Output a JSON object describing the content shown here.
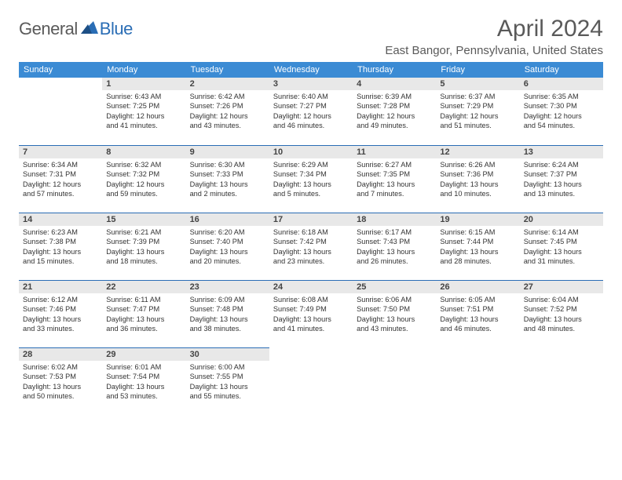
{
  "logo": {
    "general": "General",
    "blue": "Blue"
  },
  "title": "April 2024",
  "subtitle": "East Bangor, Pennsylvania, United States",
  "colors": {
    "header_bg": "#3b8bd4",
    "header_text": "#ffffff",
    "daynum_bg": "#e8e8e8",
    "border": "#2a6db5",
    "logo_blue": "#2a6db5",
    "text": "#333333"
  },
  "weekdays": [
    "Sunday",
    "Monday",
    "Tuesday",
    "Wednesday",
    "Thursday",
    "Friday",
    "Saturday"
  ],
  "weeks": [
    [
      null,
      {
        "n": "1",
        "sr": "Sunrise: 6:43 AM",
        "ss": "Sunset: 7:25 PM",
        "d1": "Daylight: 12 hours",
        "d2": "and 41 minutes."
      },
      {
        "n": "2",
        "sr": "Sunrise: 6:42 AM",
        "ss": "Sunset: 7:26 PM",
        "d1": "Daylight: 12 hours",
        "d2": "and 43 minutes."
      },
      {
        "n": "3",
        "sr": "Sunrise: 6:40 AM",
        "ss": "Sunset: 7:27 PM",
        "d1": "Daylight: 12 hours",
        "d2": "and 46 minutes."
      },
      {
        "n": "4",
        "sr": "Sunrise: 6:39 AM",
        "ss": "Sunset: 7:28 PM",
        "d1": "Daylight: 12 hours",
        "d2": "and 49 minutes."
      },
      {
        "n": "5",
        "sr": "Sunrise: 6:37 AM",
        "ss": "Sunset: 7:29 PM",
        "d1": "Daylight: 12 hours",
        "d2": "and 51 minutes."
      },
      {
        "n": "6",
        "sr": "Sunrise: 6:35 AM",
        "ss": "Sunset: 7:30 PM",
        "d1": "Daylight: 12 hours",
        "d2": "and 54 minutes."
      }
    ],
    [
      {
        "n": "7",
        "sr": "Sunrise: 6:34 AM",
        "ss": "Sunset: 7:31 PM",
        "d1": "Daylight: 12 hours",
        "d2": "and 57 minutes."
      },
      {
        "n": "8",
        "sr": "Sunrise: 6:32 AM",
        "ss": "Sunset: 7:32 PM",
        "d1": "Daylight: 12 hours",
        "d2": "and 59 minutes."
      },
      {
        "n": "9",
        "sr": "Sunrise: 6:30 AM",
        "ss": "Sunset: 7:33 PM",
        "d1": "Daylight: 13 hours",
        "d2": "and 2 minutes."
      },
      {
        "n": "10",
        "sr": "Sunrise: 6:29 AM",
        "ss": "Sunset: 7:34 PM",
        "d1": "Daylight: 13 hours",
        "d2": "and 5 minutes."
      },
      {
        "n": "11",
        "sr": "Sunrise: 6:27 AM",
        "ss": "Sunset: 7:35 PM",
        "d1": "Daylight: 13 hours",
        "d2": "and 7 minutes."
      },
      {
        "n": "12",
        "sr": "Sunrise: 6:26 AM",
        "ss": "Sunset: 7:36 PM",
        "d1": "Daylight: 13 hours",
        "d2": "and 10 minutes."
      },
      {
        "n": "13",
        "sr": "Sunrise: 6:24 AM",
        "ss": "Sunset: 7:37 PM",
        "d1": "Daylight: 13 hours",
        "d2": "and 13 minutes."
      }
    ],
    [
      {
        "n": "14",
        "sr": "Sunrise: 6:23 AM",
        "ss": "Sunset: 7:38 PM",
        "d1": "Daylight: 13 hours",
        "d2": "and 15 minutes."
      },
      {
        "n": "15",
        "sr": "Sunrise: 6:21 AM",
        "ss": "Sunset: 7:39 PM",
        "d1": "Daylight: 13 hours",
        "d2": "and 18 minutes."
      },
      {
        "n": "16",
        "sr": "Sunrise: 6:20 AM",
        "ss": "Sunset: 7:40 PM",
        "d1": "Daylight: 13 hours",
        "d2": "and 20 minutes."
      },
      {
        "n": "17",
        "sr": "Sunrise: 6:18 AM",
        "ss": "Sunset: 7:42 PM",
        "d1": "Daylight: 13 hours",
        "d2": "and 23 minutes."
      },
      {
        "n": "18",
        "sr": "Sunrise: 6:17 AM",
        "ss": "Sunset: 7:43 PM",
        "d1": "Daylight: 13 hours",
        "d2": "and 26 minutes."
      },
      {
        "n": "19",
        "sr": "Sunrise: 6:15 AM",
        "ss": "Sunset: 7:44 PM",
        "d1": "Daylight: 13 hours",
        "d2": "and 28 minutes."
      },
      {
        "n": "20",
        "sr": "Sunrise: 6:14 AM",
        "ss": "Sunset: 7:45 PM",
        "d1": "Daylight: 13 hours",
        "d2": "and 31 minutes."
      }
    ],
    [
      {
        "n": "21",
        "sr": "Sunrise: 6:12 AM",
        "ss": "Sunset: 7:46 PM",
        "d1": "Daylight: 13 hours",
        "d2": "and 33 minutes."
      },
      {
        "n": "22",
        "sr": "Sunrise: 6:11 AM",
        "ss": "Sunset: 7:47 PM",
        "d1": "Daylight: 13 hours",
        "d2": "and 36 minutes."
      },
      {
        "n": "23",
        "sr": "Sunrise: 6:09 AM",
        "ss": "Sunset: 7:48 PM",
        "d1": "Daylight: 13 hours",
        "d2": "and 38 minutes."
      },
      {
        "n": "24",
        "sr": "Sunrise: 6:08 AM",
        "ss": "Sunset: 7:49 PM",
        "d1": "Daylight: 13 hours",
        "d2": "and 41 minutes."
      },
      {
        "n": "25",
        "sr": "Sunrise: 6:06 AM",
        "ss": "Sunset: 7:50 PM",
        "d1": "Daylight: 13 hours",
        "d2": "and 43 minutes."
      },
      {
        "n": "26",
        "sr": "Sunrise: 6:05 AM",
        "ss": "Sunset: 7:51 PM",
        "d1": "Daylight: 13 hours",
        "d2": "and 46 minutes."
      },
      {
        "n": "27",
        "sr": "Sunrise: 6:04 AM",
        "ss": "Sunset: 7:52 PM",
        "d1": "Daylight: 13 hours",
        "d2": "and 48 minutes."
      }
    ],
    [
      {
        "n": "28",
        "sr": "Sunrise: 6:02 AM",
        "ss": "Sunset: 7:53 PM",
        "d1": "Daylight: 13 hours",
        "d2": "and 50 minutes."
      },
      {
        "n": "29",
        "sr": "Sunrise: 6:01 AM",
        "ss": "Sunset: 7:54 PM",
        "d1": "Daylight: 13 hours",
        "d2": "and 53 minutes."
      },
      {
        "n": "30",
        "sr": "Sunrise: 6:00 AM",
        "ss": "Sunset: 7:55 PM",
        "d1": "Daylight: 13 hours",
        "d2": "and 55 minutes."
      },
      null,
      null,
      null,
      null
    ]
  ]
}
